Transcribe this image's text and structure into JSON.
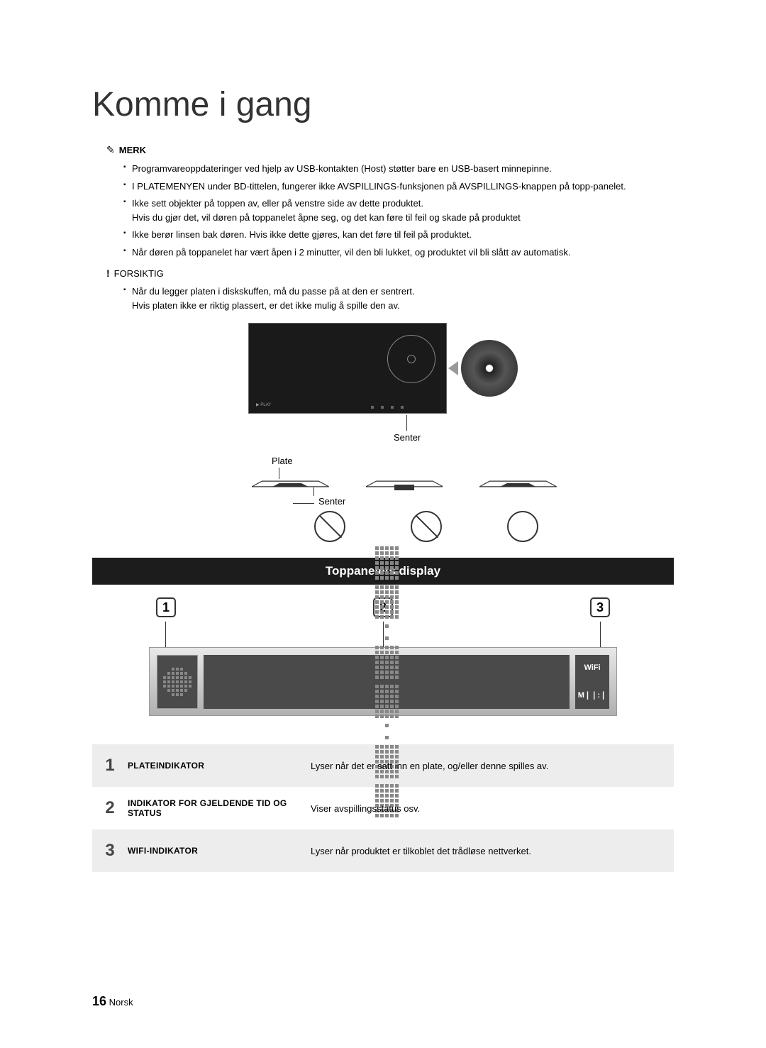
{
  "title": "Komme i gang",
  "note": {
    "icon": "✎",
    "label": "MERK",
    "items": [
      "Programvareoppdateringer ved hjelp av USB-kontakten (Host) støtter bare en USB-basert minnepinne.",
      "I PLATEMENYEN under BD-tittelen, fungerer ikke AVSPILLINGS-funksjonen på AVSPILLINGS-knappen på topp-panelet.",
      "Ikke sett objekter på toppen av, eller på venstre side av dette produktet.\nHvis du gjør det, vil døren på toppanelet åpne seg, og det kan føre til feil og skade på produktet",
      "Ikke berør linsen bak døren. Hvis ikke dette gjøres, kan det føre til feil på produktet.",
      "Når døren på toppanelet har vært åpen i 2 minutter, vil den bli lukket, og produktet vil bli slått av automatisk."
    ]
  },
  "caution": {
    "icon": "!",
    "label": "FORSIKTIG",
    "items": [
      "Når du legger platen i diskskuffen, må du passe på at den er sentrert.\nHvis platen ikke er riktig plassert, er det ikke mulig å spille den av."
    ]
  },
  "diagram": {
    "senter1": "Senter",
    "plate": "Plate",
    "senter2": "Senter",
    "play": "▶  PLAY"
  },
  "panel_header": "Toppanelets display",
  "indicators": {
    "i1": "1",
    "i2": "2",
    "i3": "3"
  },
  "display": {
    "wifi": "WiFi",
    "mute": "M❘❘:❘"
  },
  "table": {
    "rows": [
      {
        "num": "1",
        "label": "PLATEINDIKATOR",
        "desc": "Lyser når det er satt inn en plate, og/eller denne spilles av."
      },
      {
        "num": "2",
        "label": "INDIKATOR FOR GJELDENDE TID OG STATUS",
        "desc": "Viser avspillingsstatus osv."
      },
      {
        "num": "3",
        "label": "WIFI-INDIKATOR",
        "desc": "Lyser når produktet er tilkoblet det trådløse nettverket."
      }
    ]
  },
  "footer": {
    "page": "16",
    "lang": "Norsk"
  },
  "colors": {
    "text": "#333333",
    "table_alt": "#ededed",
    "panel_bg": "#1c1c1c",
    "display_grad_top": "#e8e8e8",
    "display_grad_bottom": "#b0b0b0",
    "segment_bg": "#4a4a4a",
    "dot": "#888888"
  }
}
